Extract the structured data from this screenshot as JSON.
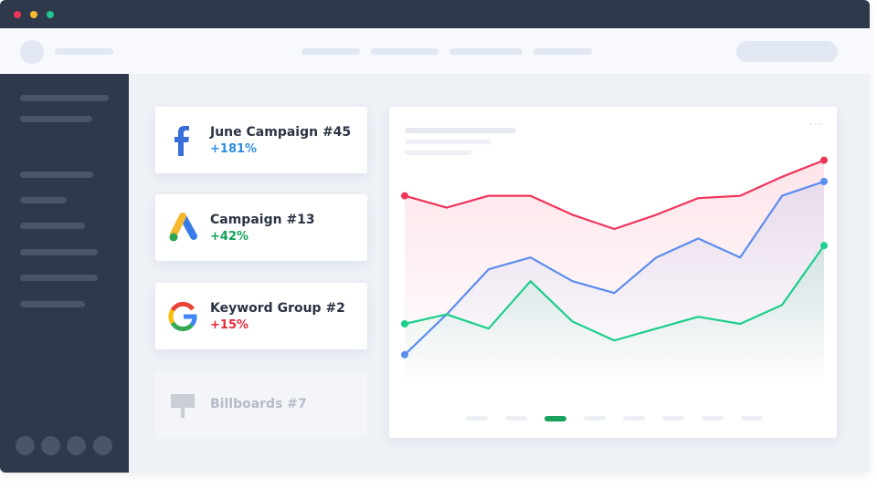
{
  "cards": [
    {
      "title": "June Campaign #45",
      "change": "+181%",
      "color": "#2d8ce0"
    },
    {
      "title": "Campaign #13",
      "change": "+42%",
      "color": "#14a05a"
    },
    {
      "title": "Keyword Group #2",
      "change": "+15%",
      "color": "#e8283a"
    },
    {
      "title": "Billboards #7"
    }
  ],
  "chart_data": {
    "type": "line",
    "ylim": [
      0,
      100
    ],
    "series": [
      {
        "color": "#f0345a",
        "values": [
          79,
          74,
          79,
          79,
          71,
          65,
          71,
          78,
          79,
          87,
          94
        ]
      },
      {
        "color": "#5b8def",
        "values": [
          12,
          29,
          48,
          53,
          43,
          38,
          53,
          61,
          53,
          79,
          85
        ]
      },
      {
        "color": "#1ccf8a",
        "values": [
          25,
          29,
          23,
          43,
          26,
          18,
          23,
          28,
          25,
          33,
          58
        ]
      }
    ]
  }
}
